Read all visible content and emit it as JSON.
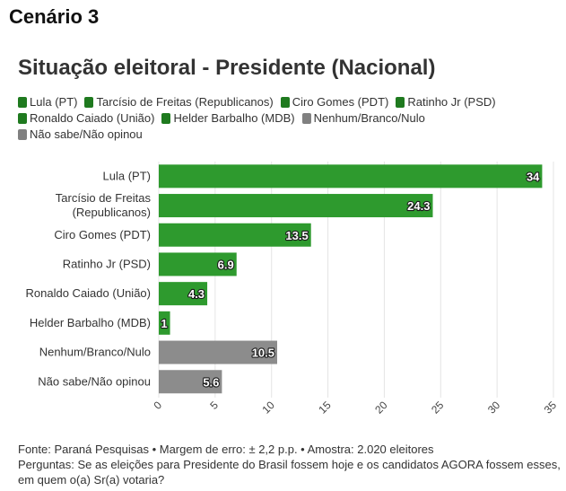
{
  "header": {
    "scenario": "Cenário 3"
  },
  "chart_data": {
    "type": "bar",
    "orientation": "horizontal",
    "title": "Situação eleitoral - Presidente (Nacional)",
    "categories": [
      "Lula (PT)",
      "Tarcísio de Freitas (Republicanos)",
      "Ciro Gomes (PDT)",
      "Ratinho Jr (PSD)",
      "Ronaldo Caiado (União)",
      "Helder Barbalho (MDB)",
      "Nenhum/Branco/Nulo",
      "Não sabe/Não opinou"
    ],
    "category_lines": [
      [
        "Lula (PT)"
      ],
      [
        "Tarcísio de Freitas",
        "(Republicanos)"
      ],
      [
        "Ciro Gomes (PDT)"
      ],
      [
        "Ratinho Jr (PSD)"
      ],
      [
        "Ronaldo Caiado (União)"
      ],
      [
        "Helder Barbalho (MDB)"
      ],
      [
        "Nenhum/Branco/Nulo"
      ],
      [
        "Não sabe/Não opinou"
      ]
    ],
    "values": [
      34,
      24.3,
      13.5,
      6.9,
      4.3,
      1,
      10.5,
      5.6
    ],
    "value_labels": [
      "34",
      "24.3",
      "13.5",
      "6.9",
      "4.3",
      "1",
      "10.5",
      "5.6"
    ],
    "bar_colors": [
      "#2e9a2e",
      "#2e9a2e",
      "#2e9a2e",
      "#2e9a2e",
      "#2e9a2e",
      "#2e9a2e",
      "#8c8c8c",
      "#8c8c8c"
    ],
    "legend": [
      {
        "label": "Lula (PT)",
        "color": "#1f7a1f"
      },
      {
        "label": "Tarcísio de Freitas (Republicanos)",
        "color": "#1f7a1f"
      },
      {
        "label": "Ciro Gomes (PDT)",
        "color": "#1f7a1f"
      },
      {
        "label": "Ratinho Jr (PSD)",
        "color": "#1f7a1f"
      },
      {
        "label": "Ronaldo Caiado (União)",
        "color": "#1f7a1f"
      },
      {
        "label": "Helder Barbalho (MDB)",
        "color": "#1f7a1f"
      },
      {
        "label": "Nenhum/Branco/Nulo",
        "color": "#808080"
      },
      {
        "label": "Não sabe/Não opinou",
        "color": "#808080"
      }
    ],
    "legend_placement": "top",
    "xlim": [
      0,
      35
    ],
    "x_ticks": [
      0,
      5,
      10,
      15,
      20,
      25,
      30,
      35
    ],
    "grid": true,
    "xlabel": "",
    "ylabel": ""
  },
  "footer": {
    "source": "Fonte: Paraná Pesquisas • Margem de erro: ± 2,2 p.p. • Amostra: 2.020 eleitores",
    "question": "Perguntas: Se as eleições para Presidente do Brasil fossem hoje e os candidatos AGORA fossem esses, em quem o(a) Sr(a) votaria?"
  }
}
